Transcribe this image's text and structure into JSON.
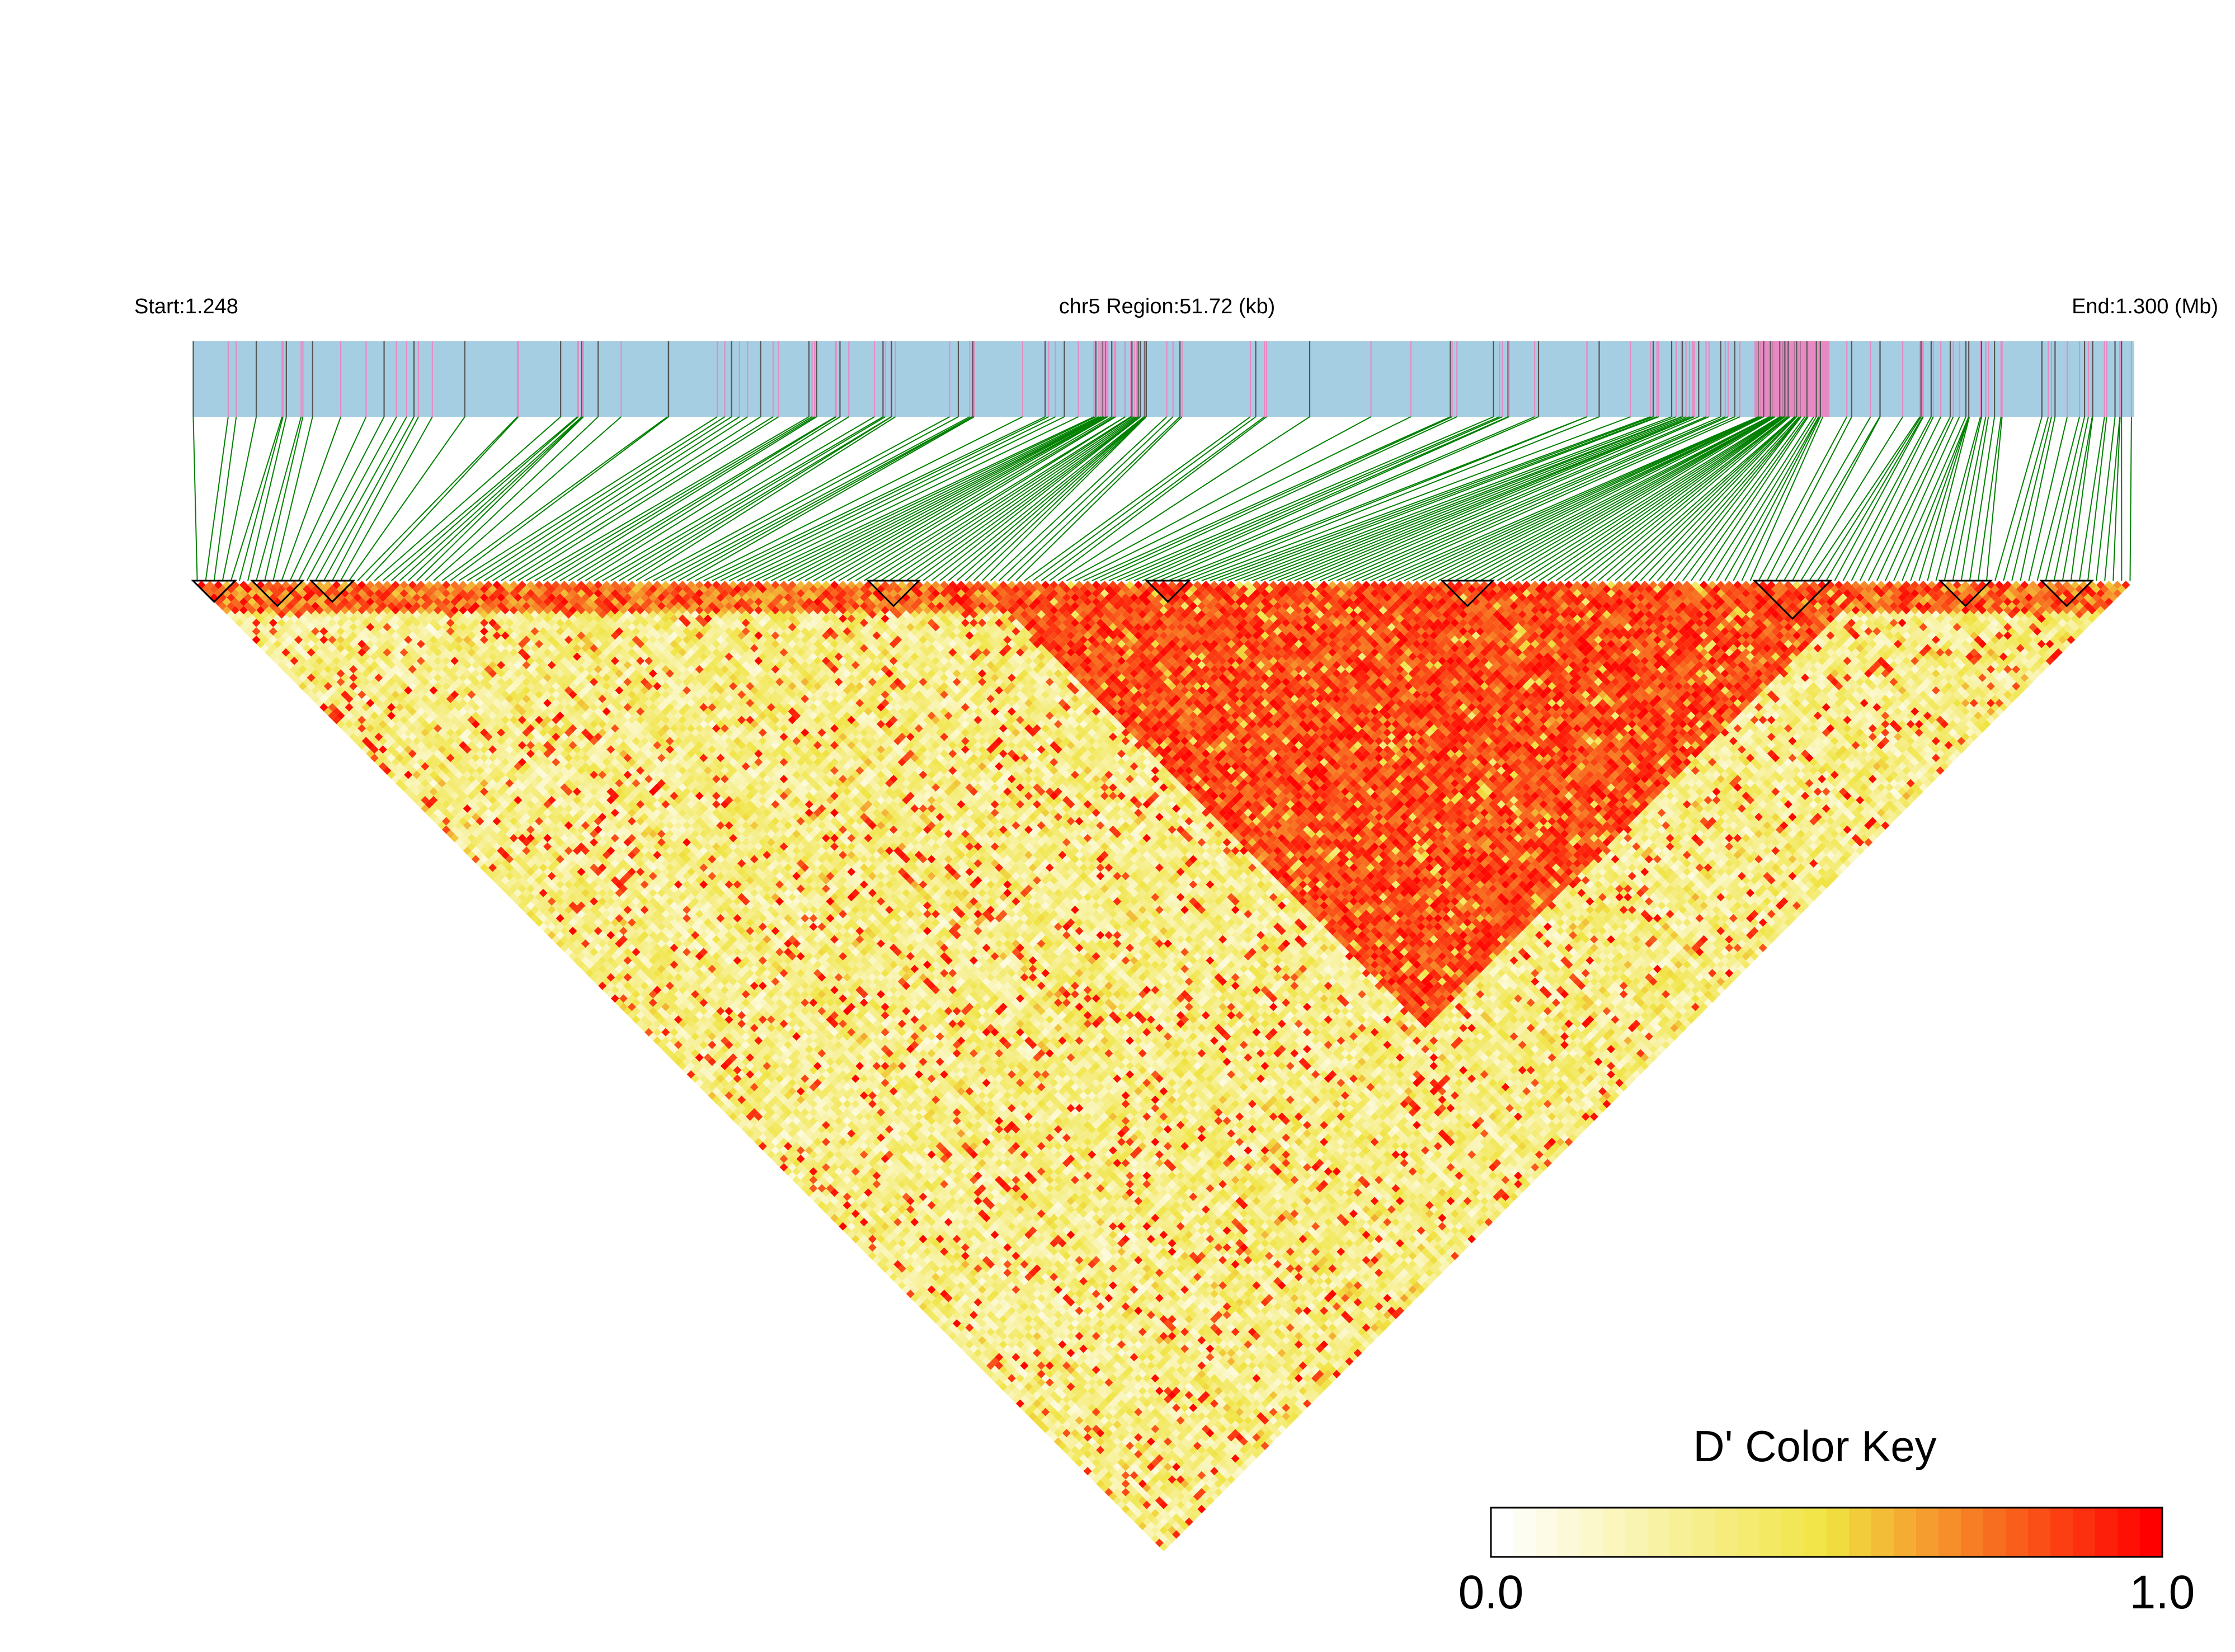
{
  "chart_data": {
    "type": "heatmap",
    "title": "",
    "chromosome_label": "chr5 Region:51.72 (kb)",
    "start_label": "Start:1.248",
    "end_label": "End:1.300 (Mb)",
    "region_start_mb": 1.248,
    "region_end_mb": 1.3,
    "region_length_kb": 51.72,
    "color_key": {
      "title": "D' Color Key",
      "min_label": "0.0",
      "max_label": "1.0",
      "min": 0.0,
      "max": 1.0,
      "colors": [
        "#ffffff",
        "#f0e442",
        "#ff0000"
      ]
    },
    "track_colors": {
      "background": "#a6cee3",
      "highlight": "#e78ac3",
      "snp_tick": "#555555",
      "connector": "#008000"
    },
    "highlight_region_kb": [
      41.6,
      43.6
    ],
    "ld_blocks_kb": [
      [
        0.0,
        1.1
      ],
      [
        1.6,
        2.9
      ],
      [
        3.1,
        4.3
      ],
      [
        18.0,
        19.4
      ],
      [
        25.3,
        26.6
      ],
      [
        33.2,
        34.6
      ],
      [
        41.6,
        43.6
      ],
      [
        46.6,
        48.0
      ],
      [
        49.3,
        50.6
      ]
    ],
    "high_ld_block_kb": [
      21.0,
      44.5
    ]
  }
}
